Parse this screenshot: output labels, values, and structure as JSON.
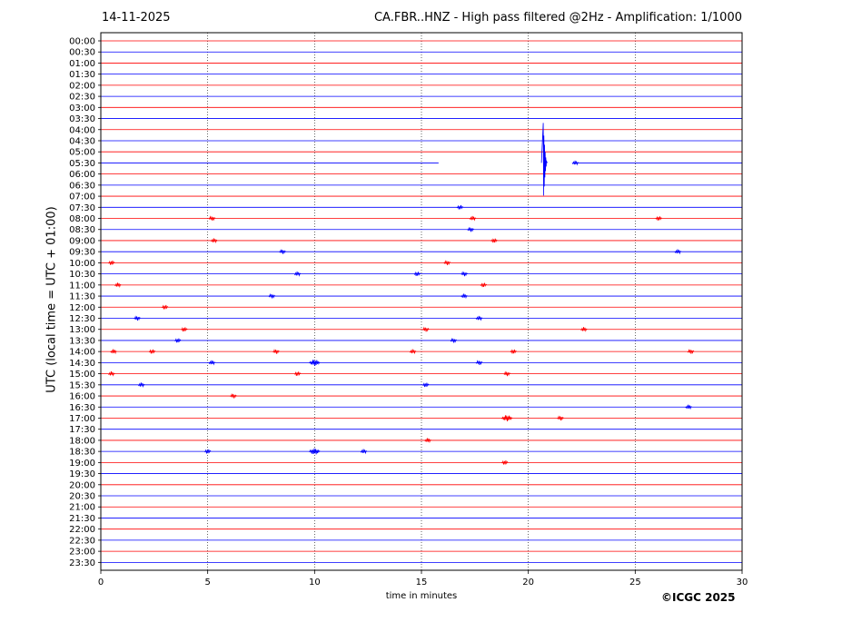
{
  "header": {
    "date": "14-11-2025",
    "title": "CA.FBR..HNZ - High pass filtered @2Hz - Amplification: 1/1000"
  },
  "footer": {
    "copyright": "©ICGC 2025"
  },
  "chart_data": {
    "type": "line",
    "title": "CA.FBR..HNZ - High pass filtered @2Hz - Amplification: 1/1000",
    "xlabel": "time in minutes",
    "ylabel": "UTC (local time = UTC + 01:00)",
    "xlim": [
      0,
      30
    ],
    "x_ticks": [
      "0",
      "5",
      "10",
      "15",
      "20",
      "25",
      "30"
    ],
    "grid": "vertical dotted at 5-minute intervals",
    "colors": {
      "even_rows": "#ff0000",
      "odd_rows": "#0000ff"
    },
    "rows": [
      "00:00",
      "00:30",
      "01:00",
      "01:30",
      "02:00",
      "02:30",
      "03:00",
      "03:30",
      "04:00",
      "04:30",
      "05:00",
      "05:30",
      "06:00",
      "06:30",
      "07:00",
      "07:30",
      "08:00",
      "08:30",
      "09:00",
      "09:30",
      "10:00",
      "10:30",
      "11:00",
      "11:30",
      "12:00",
      "12:30",
      "13:00",
      "13:30",
      "14:00",
      "14:30",
      "15:00",
      "15:30",
      "16:00",
      "16:30",
      "17:00",
      "17:30",
      "18:00",
      "18:30",
      "19:00",
      "19:30",
      "20:00",
      "20:30",
      "21:00",
      "21:30",
      "22:00",
      "22:30",
      "23:00",
      "23:30"
    ],
    "gap": {
      "row": "05:30",
      "x_start": 15.8,
      "x_end": 22.1
    },
    "events": [
      {
        "row": "05:30",
        "x": 20.7,
        "amplitude": "large"
      },
      {
        "row": "05:30",
        "x": 22.2,
        "amplitude": "small"
      },
      {
        "row": "07:30",
        "x": 16.8,
        "amplitude": "small"
      },
      {
        "row": "08:00",
        "x": 5.2,
        "amplitude": "small"
      },
      {
        "row": "08:00",
        "x": 17.4,
        "amplitude": "small"
      },
      {
        "row": "08:00",
        "x": 26.1,
        "amplitude": "small"
      },
      {
        "row": "08:30",
        "x": 17.3,
        "amplitude": "small"
      },
      {
        "row": "09:00",
        "x": 5.3,
        "amplitude": "small"
      },
      {
        "row": "09:00",
        "x": 18.4,
        "amplitude": "small"
      },
      {
        "row": "09:30",
        "x": 8.5,
        "amplitude": "small"
      },
      {
        "row": "09:30",
        "x": 27.0,
        "amplitude": "small"
      },
      {
        "row": "10:00",
        "x": 0.5,
        "amplitude": "small"
      },
      {
        "row": "10:00",
        "x": 16.2,
        "amplitude": "small"
      },
      {
        "row": "10:30",
        "x": 9.2,
        "amplitude": "small"
      },
      {
        "row": "10:30",
        "x": 14.8,
        "amplitude": "small"
      },
      {
        "row": "10:30",
        "x": 17.0,
        "amplitude": "small"
      },
      {
        "row": "11:00",
        "x": 0.8,
        "amplitude": "small"
      },
      {
        "row": "11:00",
        "x": 17.9,
        "amplitude": "small"
      },
      {
        "row": "11:30",
        "x": 8.0,
        "amplitude": "small"
      },
      {
        "row": "11:30",
        "x": 17.0,
        "amplitude": "small"
      },
      {
        "row": "12:00",
        "x": 3.0,
        "amplitude": "small"
      },
      {
        "row": "12:30",
        "x": 1.7,
        "amplitude": "small"
      },
      {
        "row": "12:30",
        "x": 17.7,
        "amplitude": "small"
      },
      {
        "row": "13:00",
        "x": 3.9,
        "amplitude": "small"
      },
      {
        "row": "13:00",
        "x": 15.2,
        "amplitude": "small"
      },
      {
        "row": "13:00",
        "x": 22.6,
        "amplitude": "small"
      },
      {
        "row": "13:30",
        "x": 3.6,
        "amplitude": "small"
      },
      {
        "row": "13:30",
        "x": 16.5,
        "amplitude": "small"
      },
      {
        "row": "14:00",
        "x": 0.6,
        "amplitude": "small"
      },
      {
        "row": "14:00",
        "x": 2.4,
        "amplitude": "small"
      },
      {
        "row": "14:00",
        "x": 8.2,
        "amplitude": "small"
      },
      {
        "row": "14:00",
        "x": 14.6,
        "amplitude": "small"
      },
      {
        "row": "14:00",
        "x": 19.3,
        "amplitude": "small"
      },
      {
        "row": "14:00",
        "x": 27.6,
        "amplitude": "small"
      },
      {
        "row": "14:30",
        "x": 5.2,
        "amplitude": "small"
      },
      {
        "row": "14:30",
        "x": 10.0,
        "amplitude": "medium"
      },
      {
        "row": "14:30",
        "x": 17.7,
        "amplitude": "small"
      },
      {
        "row": "15:00",
        "x": 0.5,
        "amplitude": "small"
      },
      {
        "row": "15:00",
        "x": 9.2,
        "amplitude": "small"
      },
      {
        "row": "15:00",
        "x": 19.0,
        "amplitude": "small"
      },
      {
        "row": "15:30",
        "x": 1.9,
        "amplitude": "small"
      },
      {
        "row": "15:30",
        "x": 15.2,
        "amplitude": "small"
      },
      {
        "row": "16:00",
        "x": 6.2,
        "amplitude": "small"
      },
      {
        "row": "16:30",
        "x": 27.5,
        "amplitude": "small"
      },
      {
        "row": "17:00",
        "x": 19.0,
        "amplitude": "medium"
      },
      {
        "row": "17:00",
        "x": 21.5,
        "amplitude": "small"
      },
      {
        "row": "18:00",
        "x": 15.3,
        "amplitude": "small"
      },
      {
        "row": "18:30",
        "x": 5.0,
        "amplitude": "small"
      },
      {
        "row": "18:30",
        "x": 10.0,
        "amplitude": "medium"
      },
      {
        "row": "18:30",
        "x": 12.3,
        "amplitude": "small"
      },
      {
        "row": "19:00",
        "x": 18.9,
        "amplitude": "small"
      }
    ]
  }
}
